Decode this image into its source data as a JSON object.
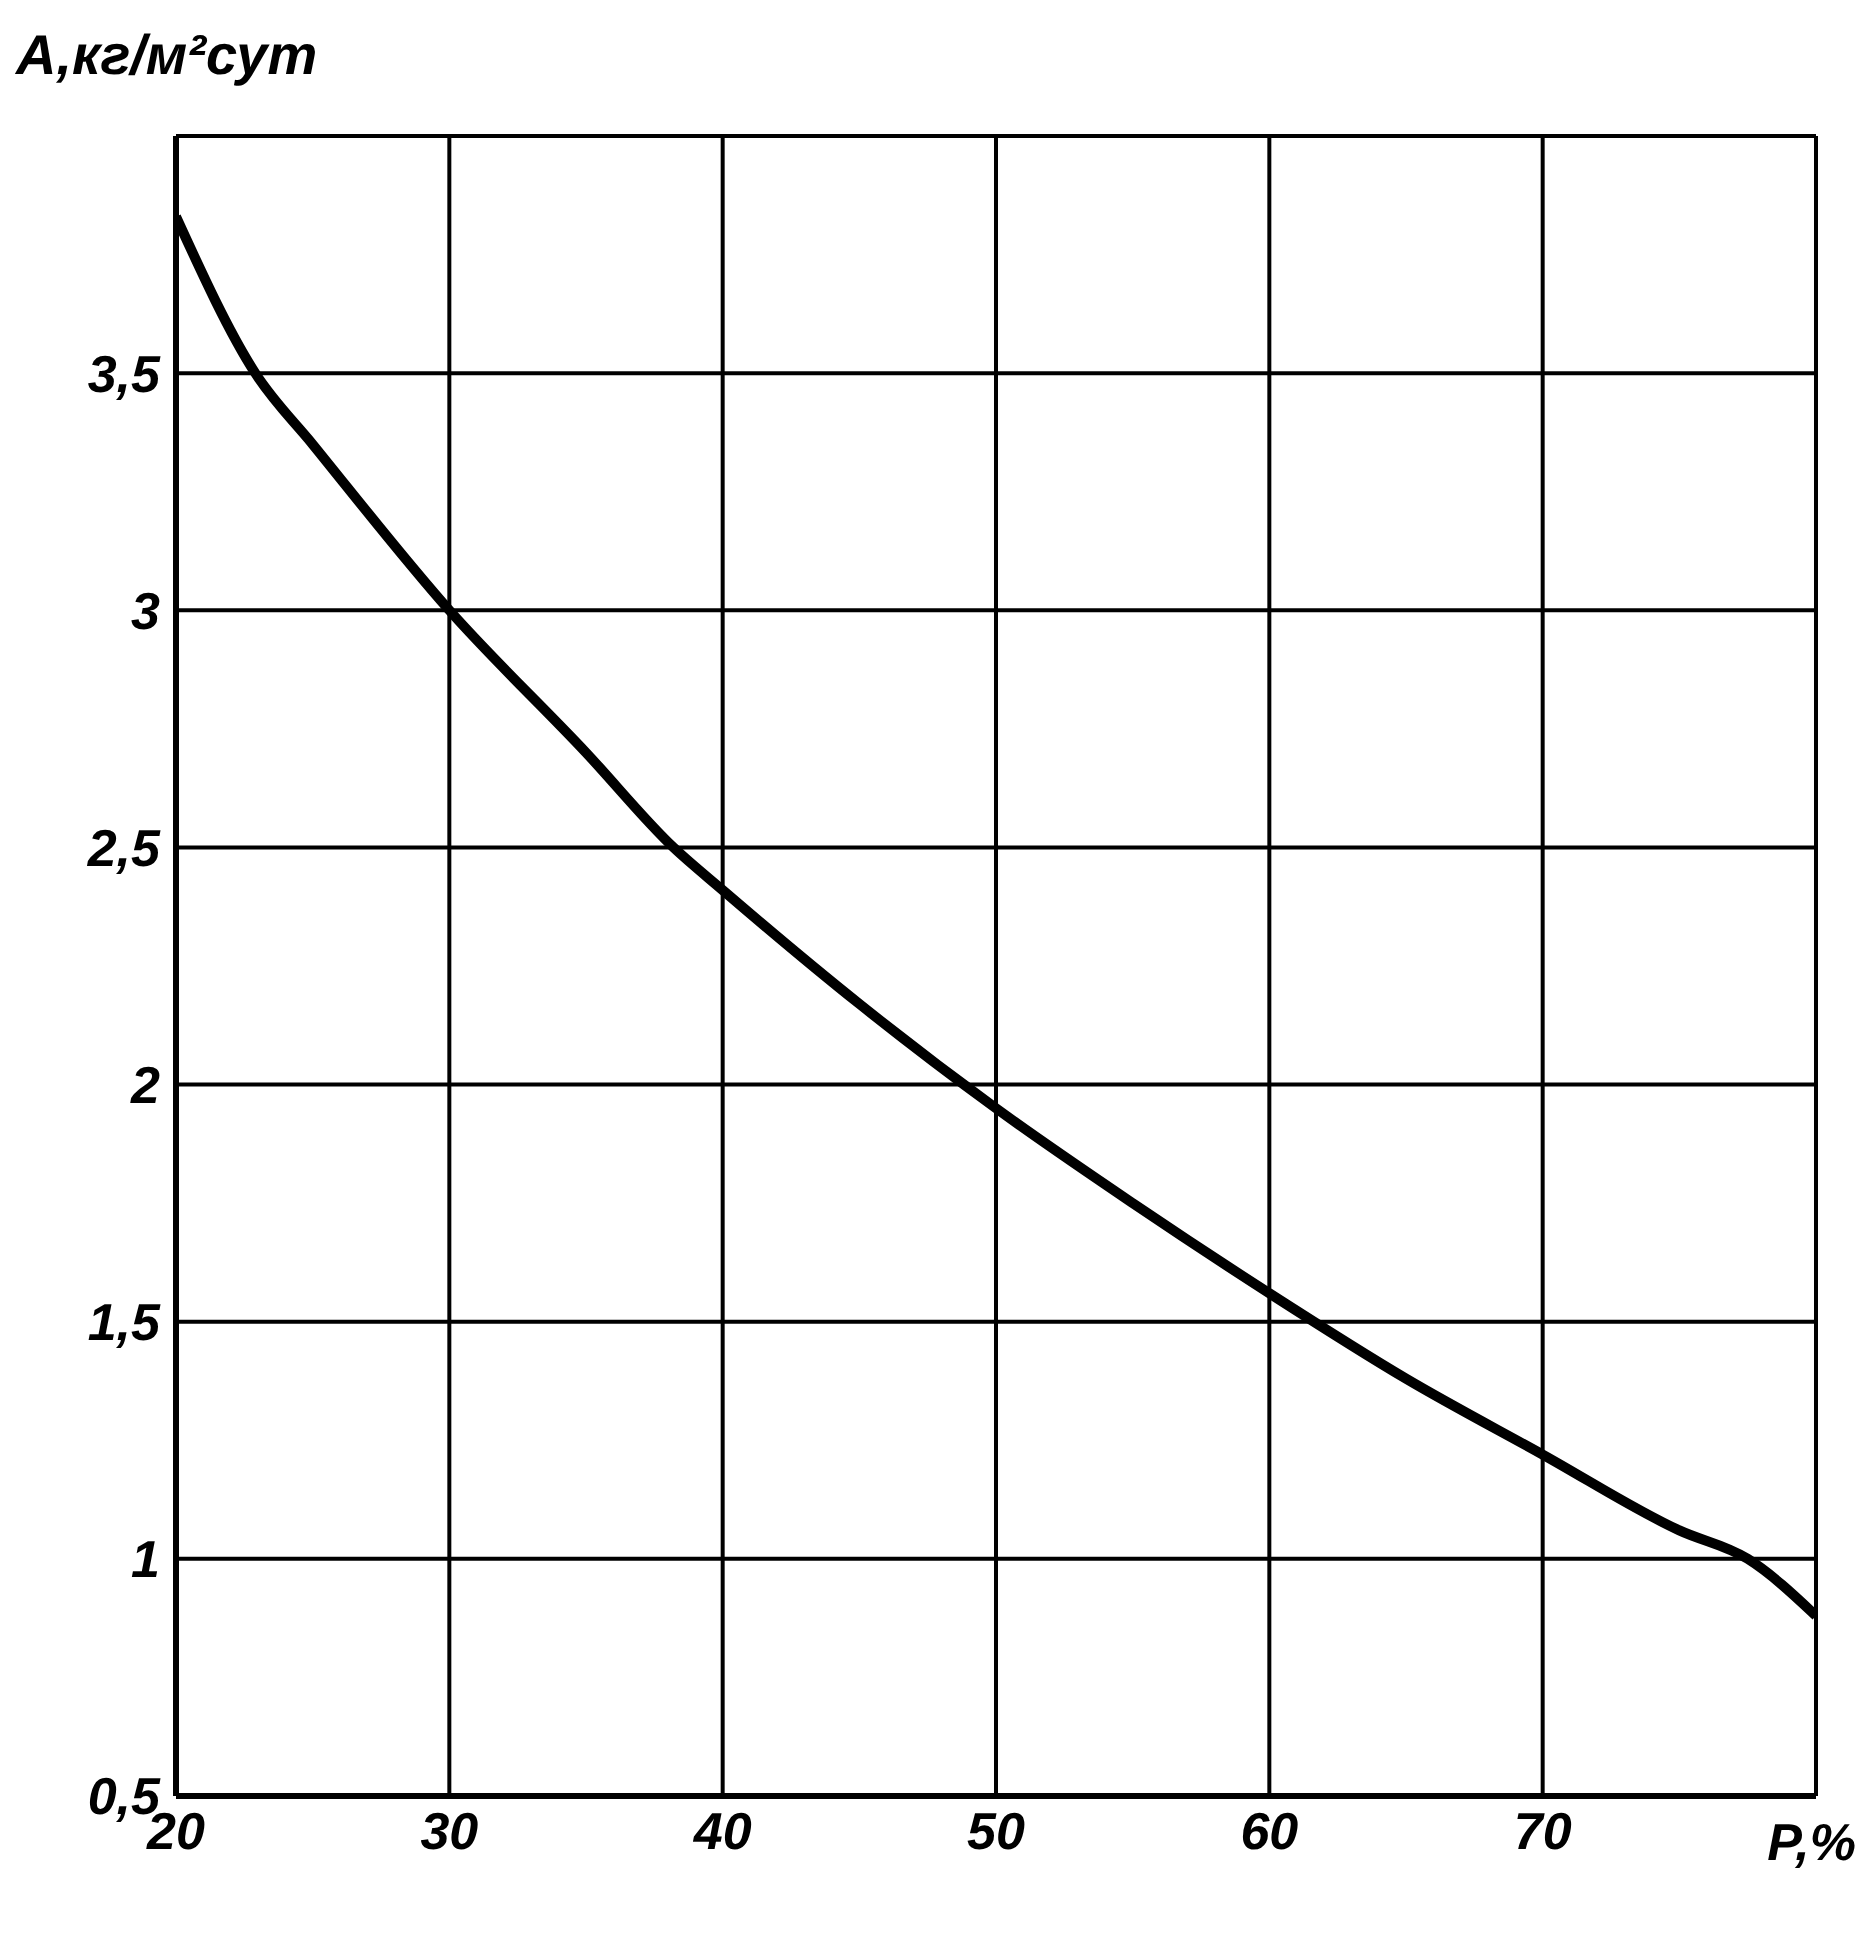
{
  "chart_data": {
    "type": "line",
    "ylabel": "A,кг/м²сут",
    "xlabel": "P,%",
    "x": [
      20,
      22.9,
      25,
      30,
      35,
      38.2,
      40,
      45,
      50,
      55,
      60,
      65,
      70,
      75,
      77.5,
      80
    ],
    "series": [
      {
        "color": "#000000",
        "values": [
          3.83,
          3.5,
          3.35,
          3.0,
          2.7,
          2.5,
          2.41,
          2.17,
          1.95,
          1.75,
          1.56,
          1.38,
          1.22,
          1.06,
          1.0,
          0.88
        ]
      }
    ],
    "xlim": [
      20,
      80
    ],
    "xticks": [
      20,
      30,
      40,
      50,
      60,
      70,
      {
        "value": 80,
        "label": null
      }
    ],
    "ylim": [
      0.5,
      4
    ],
    "yticks": [
      {
        "value": 0.5,
        "label": "0,5"
      },
      1,
      {
        "value": 1.5,
        "label": "1,5"
      },
      2,
      {
        "value": 2.5,
        "label": "2,5"
      },
      3,
      {
        "value": 3.5,
        "label": "3,5"
      },
      {
        "value": 4,
        "label": null
      }
    ],
    "grid": true,
    "marker": "none",
    "line_style": "solid"
  }
}
